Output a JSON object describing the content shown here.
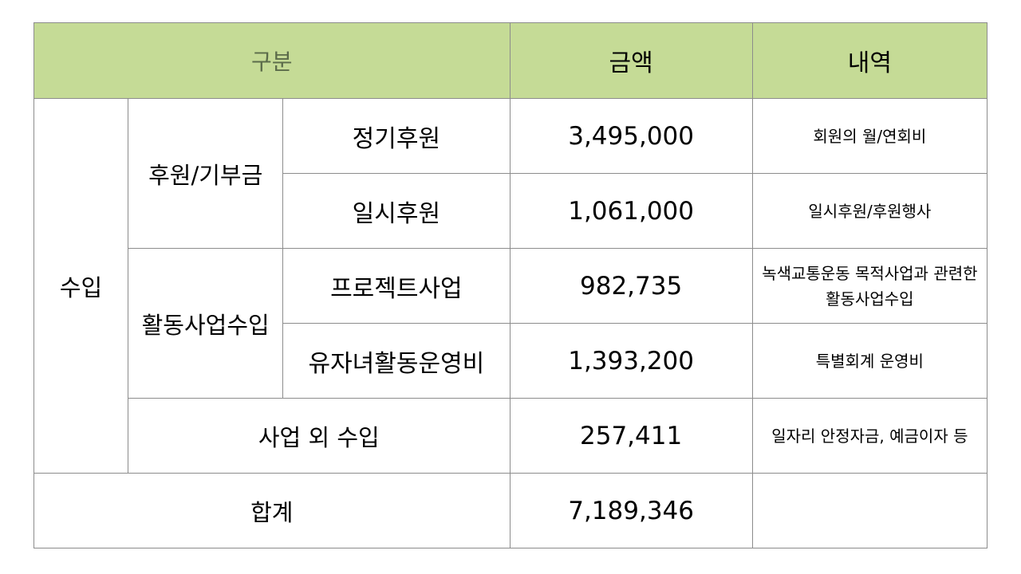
{
  "header": {
    "category": "구분",
    "amount": "금액",
    "detail": "내역"
  },
  "section": "수입",
  "groups": {
    "sponsorship": "후원/기부금",
    "activity": "활동사업수입",
    "non_business": "사업 외 수입",
    "total": "합계"
  },
  "rows": [
    {
      "item": "정기후원",
      "amount": "3,495,000",
      "detail": "회원의 월/연회비"
    },
    {
      "item": "일시후원",
      "amount": "1,061,000",
      "detail": "일시후원/후원행사"
    },
    {
      "item": "프로젝트사업",
      "amount": "982,735",
      "detail_line1": "녹색교통운동 목적사업과 관련한",
      "detail_line2": "활동사업수입"
    },
    {
      "item": "유자녀활동운영비",
      "amount": "1,393,200",
      "detail": "특별회계 운영비"
    },
    {
      "amount": "257,411",
      "detail": "일자리 안정자금, 예금이자 등"
    },
    {
      "amount": "7,189,346",
      "detail": ""
    }
  ],
  "colors": {
    "header_bg": "#c5db96",
    "border": "#8c8c8c"
  }
}
